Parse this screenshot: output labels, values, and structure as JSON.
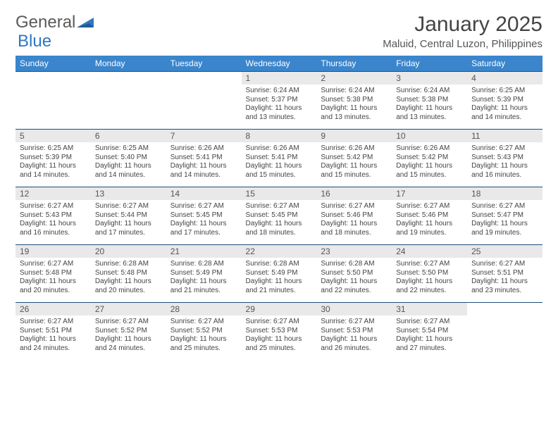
{
  "brand": {
    "part1": "General",
    "part2": "Blue",
    "logo_color": "#2f78c1"
  },
  "title": "January 2025",
  "location": "Maluid, Central Luzon, Philippines",
  "colors": {
    "header_bg": "#3a85cc",
    "header_text": "#ffffff",
    "daynum_bg": "#e9e9e9",
    "row_border": "#1f4e79",
    "text": "#444444"
  },
  "weekdays": [
    "Sunday",
    "Monday",
    "Tuesday",
    "Wednesday",
    "Thursday",
    "Friday",
    "Saturday"
  ],
  "weeks": [
    [
      null,
      null,
      null,
      {
        "n": "1",
        "sr": "6:24 AM",
        "ss": "5:37 PM",
        "dl": "11 hours and 13 minutes."
      },
      {
        "n": "2",
        "sr": "6:24 AM",
        "ss": "5:38 PM",
        "dl": "11 hours and 13 minutes."
      },
      {
        "n": "3",
        "sr": "6:24 AM",
        "ss": "5:38 PM",
        "dl": "11 hours and 13 minutes."
      },
      {
        "n": "4",
        "sr": "6:25 AM",
        "ss": "5:39 PM",
        "dl": "11 hours and 14 minutes."
      }
    ],
    [
      {
        "n": "5",
        "sr": "6:25 AM",
        "ss": "5:39 PM",
        "dl": "11 hours and 14 minutes."
      },
      {
        "n": "6",
        "sr": "6:25 AM",
        "ss": "5:40 PM",
        "dl": "11 hours and 14 minutes."
      },
      {
        "n": "7",
        "sr": "6:26 AM",
        "ss": "5:41 PM",
        "dl": "11 hours and 14 minutes."
      },
      {
        "n": "8",
        "sr": "6:26 AM",
        "ss": "5:41 PM",
        "dl": "11 hours and 15 minutes."
      },
      {
        "n": "9",
        "sr": "6:26 AM",
        "ss": "5:42 PM",
        "dl": "11 hours and 15 minutes."
      },
      {
        "n": "10",
        "sr": "6:26 AM",
        "ss": "5:42 PM",
        "dl": "11 hours and 15 minutes."
      },
      {
        "n": "11",
        "sr": "6:27 AM",
        "ss": "5:43 PM",
        "dl": "11 hours and 16 minutes."
      }
    ],
    [
      {
        "n": "12",
        "sr": "6:27 AM",
        "ss": "5:43 PM",
        "dl": "11 hours and 16 minutes."
      },
      {
        "n": "13",
        "sr": "6:27 AM",
        "ss": "5:44 PM",
        "dl": "11 hours and 17 minutes."
      },
      {
        "n": "14",
        "sr": "6:27 AM",
        "ss": "5:45 PM",
        "dl": "11 hours and 17 minutes."
      },
      {
        "n": "15",
        "sr": "6:27 AM",
        "ss": "5:45 PM",
        "dl": "11 hours and 18 minutes."
      },
      {
        "n": "16",
        "sr": "6:27 AM",
        "ss": "5:46 PM",
        "dl": "11 hours and 18 minutes."
      },
      {
        "n": "17",
        "sr": "6:27 AM",
        "ss": "5:46 PM",
        "dl": "11 hours and 19 minutes."
      },
      {
        "n": "18",
        "sr": "6:27 AM",
        "ss": "5:47 PM",
        "dl": "11 hours and 19 minutes."
      }
    ],
    [
      {
        "n": "19",
        "sr": "6:27 AM",
        "ss": "5:48 PM",
        "dl": "11 hours and 20 minutes."
      },
      {
        "n": "20",
        "sr": "6:28 AM",
        "ss": "5:48 PM",
        "dl": "11 hours and 20 minutes."
      },
      {
        "n": "21",
        "sr": "6:28 AM",
        "ss": "5:49 PM",
        "dl": "11 hours and 21 minutes."
      },
      {
        "n": "22",
        "sr": "6:28 AM",
        "ss": "5:49 PM",
        "dl": "11 hours and 21 minutes."
      },
      {
        "n": "23",
        "sr": "6:28 AM",
        "ss": "5:50 PM",
        "dl": "11 hours and 22 minutes."
      },
      {
        "n": "24",
        "sr": "6:27 AM",
        "ss": "5:50 PM",
        "dl": "11 hours and 22 minutes."
      },
      {
        "n": "25",
        "sr": "6:27 AM",
        "ss": "5:51 PM",
        "dl": "11 hours and 23 minutes."
      }
    ],
    [
      {
        "n": "26",
        "sr": "6:27 AM",
        "ss": "5:51 PM",
        "dl": "11 hours and 24 minutes."
      },
      {
        "n": "27",
        "sr": "6:27 AM",
        "ss": "5:52 PM",
        "dl": "11 hours and 24 minutes."
      },
      {
        "n": "28",
        "sr": "6:27 AM",
        "ss": "5:52 PM",
        "dl": "11 hours and 25 minutes."
      },
      {
        "n": "29",
        "sr": "6:27 AM",
        "ss": "5:53 PM",
        "dl": "11 hours and 25 minutes."
      },
      {
        "n": "30",
        "sr": "6:27 AM",
        "ss": "5:53 PM",
        "dl": "11 hours and 26 minutes."
      },
      {
        "n": "31",
        "sr": "6:27 AM",
        "ss": "5:54 PM",
        "dl": "11 hours and 27 minutes."
      },
      null
    ]
  ],
  "labels": {
    "sunrise": "Sunrise:",
    "sunset": "Sunset:",
    "daylight": "Daylight:"
  }
}
